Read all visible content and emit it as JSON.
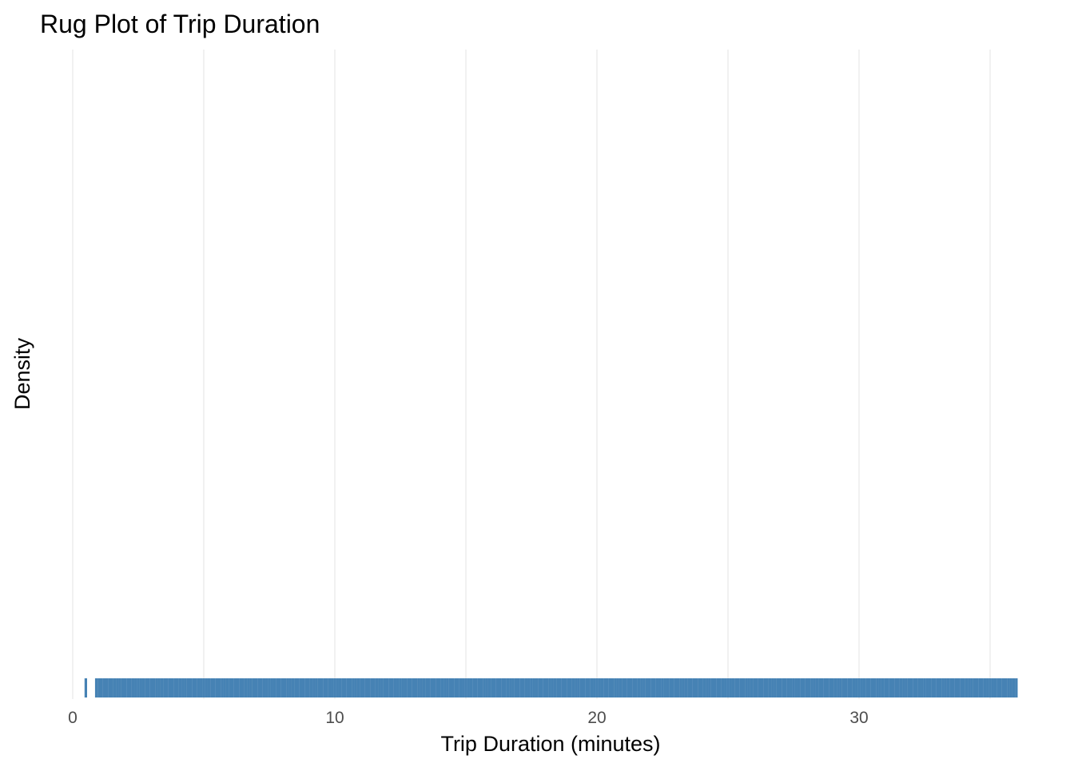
{
  "chart_data": {
    "type": "rug",
    "title": "Rug Plot of Trip Duration",
    "xlabel": "Trip Duration (minutes)",
    "ylabel": "Density",
    "xlim": [
      0,
      36
    ],
    "x_ticks": [
      0,
      10,
      20,
      30
    ],
    "x_minor_gridlines": [
      5,
      15,
      25,
      35
    ],
    "grid": true,
    "rug": {
      "color": "#4682b4",
      "values": [
        0.5,
        0.9,
        1.0,
        1.1,
        1.2,
        1.3,
        1.4,
        1.5,
        1.6,
        1.7,
        1.8,
        1.9,
        2.0,
        2.1,
        2.2,
        2.3,
        2.4,
        2.5,
        2.6,
        2.7,
        2.8,
        2.9,
        3.0,
        3.1,
        3.2,
        3.3,
        3.4,
        3.5,
        3.6,
        3.7,
        3.8,
        3.9,
        4.0,
        4.1,
        4.2,
        4.3,
        4.4,
        4.5,
        4.6,
        4.7,
        4.8,
        4.9,
        5.0,
        5.1,
        5.2,
        5.3,
        5.4,
        5.5,
        5.6,
        5.7,
        5.8,
        5.9,
        6.0,
        6.1,
        6.2,
        6.3,
        6.4,
        6.5,
        6.6,
        6.7,
        6.8,
        6.9,
        7.0,
        7.1,
        7.2,
        7.3,
        7.4,
        7.5,
        7.6,
        7.7,
        7.8,
        7.9,
        8.0,
        8.1,
        8.2,
        8.3,
        8.4,
        8.5,
        8.6,
        8.7,
        8.8,
        8.9,
        9.0,
        9.1,
        9.2,
        9.3,
        9.4,
        9.5,
        9.6,
        9.7,
        9.8,
        9.9,
        10.0,
        10.1,
        10.2,
        10.3,
        10.4,
        10.5,
        10.6,
        10.7,
        10.8,
        10.9,
        11.0,
        11.1,
        11.2,
        11.3,
        11.4,
        11.5,
        11.6,
        11.7,
        11.8,
        11.9,
        12.0,
        12.1,
        12.2,
        12.3,
        12.4,
        12.5,
        12.6,
        12.7,
        12.8,
        12.9,
        13.0,
        13.1,
        13.2,
        13.3,
        13.4,
        13.5,
        13.6,
        13.7,
        13.8,
        13.9,
        14.0,
        14.1,
        14.2,
        14.3,
        14.4,
        14.5,
        14.6,
        14.7,
        14.8,
        14.9,
        15.0,
        15.1,
        15.2,
        15.3,
        15.4,
        15.5,
        15.6,
        15.7,
        15.8,
        15.9,
        16.0,
        16.1,
        16.2,
        16.3,
        16.4,
        16.5,
        16.6,
        16.7,
        16.8,
        16.9,
        17.0,
        17.1,
        17.2,
        17.3,
        17.4,
        17.5,
        17.6,
        17.7,
        17.8,
        17.9,
        18.0,
        18.1,
        18.2,
        18.3,
        18.4,
        18.5,
        18.6,
        18.7,
        18.8,
        18.9,
        19.0,
        19.1,
        19.2,
        19.3,
        19.4,
        19.5,
        19.6,
        19.7,
        19.8,
        19.9,
        20.0,
        20.1,
        20.2,
        20.3,
        20.4,
        20.5,
        20.6,
        20.7,
        20.8,
        20.9,
        21.0,
        21.1,
        21.2,
        21.3,
        21.4,
        21.5,
        21.6,
        21.7,
        21.8,
        21.9,
        22.0,
        22.1,
        22.2,
        22.3,
        22.4,
        22.5,
        22.6,
        22.7,
        22.8,
        22.9,
        23.0,
        23.1,
        23.2,
        23.3,
        23.4,
        23.5,
        23.6,
        23.7,
        23.8,
        23.9,
        24.0,
        24.1,
        24.2,
        24.3,
        24.4,
        24.5,
        24.6,
        24.7,
        24.8,
        24.9,
        25.0,
        25.1,
        25.2,
        25.3,
        25.4,
        25.5,
        25.6,
        25.7,
        25.8,
        25.9,
        26.0,
        26.1,
        26.2,
        26.3,
        26.4,
        26.5,
        26.6,
        26.7,
        26.8,
        26.9,
        27.0,
        27.1,
        27.2,
        27.3,
        27.4,
        27.5,
        27.6,
        27.7,
        27.8,
        27.9,
        28.0,
        28.1,
        28.2,
        28.3,
        28.4,
        28.5,
        28.6,
        28.7,
        28.8,
        28.9,
        29.0,
        29.1,
        29.2,
        29.3,
        29.4,
        29.5,
        29.6,
        29.7,
        29.8,
        29.9,
        30.0,
        30.1,
        30.2,
        30.3,
        30.4,
        30.5,
        30.6,
        30.7,
        30.8,
        30.9,
        31.0,
        31.1,
        31.2,
        31.3,
        31.4,
        31.5,
        31.6,
        31.7,
        31.8,
        31.9,
        32.0,
        32.1,
        32.2,
        32.3,
        32.4,
        32.5,
        32.6,
        32.7,
        32.8,
        32.9,
        33.0,
        33.1,
        33.2,
        33.3,
        33.4,
        33.5,
        33.6,
        33.7,
        33.8,
        33.9,
        34.0,
        34.1,
        34.2,
        34.3,
        34.4,
        34.5,
        34.6,
        34.7,
        34.8,
        34.9,
        35.0,
        35.1,
        35.2,
        35.3,
        35.4,
        35.5,
        35.6,
        35.7,
        35.8,
        35.9,
        36.0
      ]
    }
  }
}
